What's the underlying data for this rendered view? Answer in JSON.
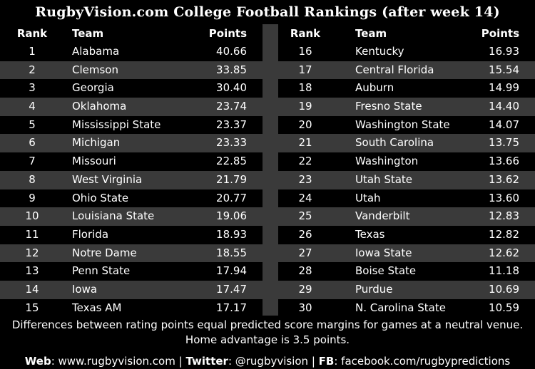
{
  "title": "RugbyVision.com College Football Rankings (after week 14)",
  "headers": {
    "rank": "Rank",
    "team": "Team",
    "points": "Points"
  },
  "left": [
    {
      "rank": "1",
      "team": "Alabama",
      "points": "40.66"
    },
    {
      "rank": "2",
      "team": "Clemson",
      "points": "33.85"
    },
    {
      "rank": "3",
      "team": "Georgia",
      "points": "30.40"
    },
    {
      "rank": "4",
      "team": "Oklahoma",
      "points": "23.74"
    },
    {
      "rank": "5",
      "team": "Mississippi State",
      "points": "23.37"
    },
    {
      "rank": "6",
      "team": "Michigan",
      "points": "23.33"
    },
    {
      "rank": "7",
      "team": "Missouri",
      "points": "22.85"
    },
    {
      "rank": "8",
      "team": "West Virginia",
      "points": "21.79"
    },
    {
      "rank": "9",
      "team": "Ohio State",
      "points": "20.77"
    },
    {
      "rank": "10",
      "team": "Louisiana State",
      "points": "19.06"
    },
    {
      "rank": "11",
      "team": "Florida",
      "points": "18.93"
    },
    {
      "rank": "12",
      "team": "Notre Dame",
      "points": "18.55"
    },
    {
      "rank": "13",
      "team": "Penn State",
      "points": "17.94"
    },
    {
      "rank": "14",
      "team": "Iowa",
      "points": "17.47"
    },
    {
      "rank": "15",
      "team": "Texas AM",
      "points": "17.17"
    }
  ],
  "right": [
    {
      "rank": "16",
      "team": "Kentucky",
      "points": "16.93"
    },
    {
      "rank": "17",
      "team": "Central Florida",
      "points": "15.54"
    },
    {
      "rank": "18",
      "team": "Auburn",
      "points": "14.99"
    },
    {
      "rank": "19",
      "team": "Fresno State",
      "points": "14.40"
    },
    {
      "rank": "20",
      "team": "Washington State",
      "points": "14.07"
    },
    {
      "rank": "21",
      "team": "South Carolina",
      "points": "13.75"
    },
    {
      "rank": "22",
      "team": "Washington",
      "points": "13.66"
    },
    {
      "rank": "23",
      "team": "Utah State",
      "points": "13.62"
    },
    {
      "rank": "24",
      "team": "Utah",
      "points": "13.60"
    },
    {
      "rank": "25",
      "team": "Vanderbilt",
      "points": "12.83"
    },
    {
      "rank": "26",
      "team": "Texas",
      "points": "12.82"
    },
    {
      "rank": "27",
      "team": "Iowa State",
      "points": "12.62"
    },
    {
      "rank": "28",
      "team": "Boise State",
      "points": "11.18"
    },
    {
      "rank": "29",
      "team": "Purdue",
      "points": "10.69"
    },
    {
      "rank": "30",
      "team": "N. Carolina State",
      "points": "10.59"
    }
  ],
  "note_line1": "Differences between rating points equal predicted score margins for games at a neutral venue.",
  "note_line2": "Home advantage is 3.5 points.",
  "footer": {
    "web_label": "Web",
    "web_value": ": www.rugbyvision.com | ",
    "twitter_label": "Twitter",
    "twitter_value": ": @rugbyvision | ",
    "fb_label": "FB",
    "fb_value": ": facebook.com/rugbypredictions"
  },
  "colors": {
    "background": "#000000",
    "row_alt": "#3a3a3a",
    "text": "#ffffff"
  }
}
